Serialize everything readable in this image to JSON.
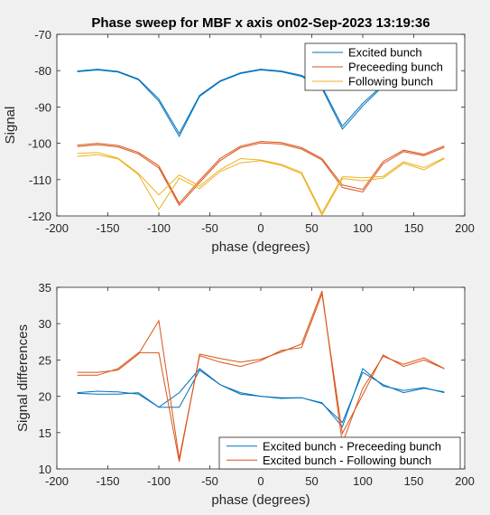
{
  "chart_data": [
    {
      "type": "line",
      "title": "Phase sweep for MBF x axis on02-Sep-2023 13:19:36",
      "xlabel": "phase (degrees)",
      "ylabel": "Signal",
      "xlim": [
        -200,
        200
      ],
      "ylim": [
        -120,
        -70
      ],
      "xticks": [
        "-200",
        "-150",
        "-100",
        "-50",
        "0",
        "50",
        "100",
        "150",
        "200"
      ],
      "yticks": [
        "-120",
        "-110",
        "-100",
        "-90",
        "-80",
        "-70"
      ],
      "legend_position": "top-right",
      "series": [
        {
          "name": "Excited bunch",
          "color": "#0072bd",
          "x": [
            -180,
            -160,
            -140,
            -120,
            -100,
            -80,
            -60,
            -40,
            -20,
            0,
            20,
            40,
            60,
            80,
            100,
            120,
            140,
            160,
            180
          ],
          "lines": [
            [
              -80.1,
              -79.6,
              -80.2,
              -82.3,
              -87.8,
              -97.3,
              -86.8,
              -82.8,
              -80.6,
              -79.6,
              -80.1,
              -81.3,
              -84.4,
              -95.3,
              -89.0,
              -83.8,
              -81.3,
              -80.0,
              -79.8
            ],
            [
              -80.3,
              -79.8,
              -80.4,
              -82.5,
              -88.4,
              -98.1,
              -87.1,
              -83.0,
              -80.8,
              -79.8,
              -80.3,
              -81.6,
              -84.9,
              -96.1,
              -89.7,
              -84.2,
              -81.5,
              -80.2,
              -80.0
            ]
          ]
        },
        {
          "name": "Preceeding bunch",
          "color": "#d95319",
          "x": [
            -180,
            -160,
            -140,
            -120,
            -100,
            -80,
            -60,
            -40,
            -20,
            0,
            20,
            40,
            60,
            80,
            100,
            120,
            140,
            160,
            180
          ],
          "lines": [
            [
              -100.5,
              -100.0,
              -100.6,
              -102.5,
              -106.2,
              -116.5,
              -110.2,
              -104.2,
              -100.8,
              -99.5,
              -99.8,
              -101.2,
              -104.2,
              -111.5,
              -112.7,
              -105.0,
              -101.9,
              -103.0,
              -100.7
            ],
            [
              -100.9,
              -100.4,
              -101.0,
              -102.9,
              -106.8,
              -117.1,
              -110.8,
              -104.8,
              -101.2,
              -99.9,
              -100.2,
              -101.6,
              -104.6,
              -112.2,
              -113.4,
              -105.6,
              -102.3,
              -103.4,
              -101.1
            ]
          ]
        },
        {
          "name": "Following bunch",
          "color": "#edb120",
          "x": [
            -180,
            -160,
            -140,
            -120,
            -100,
            -80,
            -60,
            -40,
            -20,
            0,
            20,
            40,
            60,
            80,
            100,
            120,
            140,
            160,
            180
          ],
          "lines": [
            [
              -102.8,
              -102.5,
              -104.1,
              -108.3,
              -114.2,
              -108.7,
              -111.8,
              -107.3,
              -104.2,
              -104.6,
              -105.8,
              -108.0,
              -119.2,
              -109.2,
              -109.5,
              -109.1,
              -105.1,
              -106.7,
              -104.0
            ],
            [
              -103.6,
              -103.1,
              -104.3,
              -108.6,
              -118.2,
              -109.6,
              -112.5,
              -107.8,
              -105.4,
              -104.8,
              -106.1,
              -108.4,
              -119.8,
              -109.7,
              -110.3,
              -109.6,
              -105.5,
              -107.3,
              -104.2
            ]
          ]
        }
      ]
    },
    {
      "type": "line",
      "title": "",
      "xlabel": "phase (degrees)",
      "ylabel": "Signal differences",
      "xlim": [
        -200,
        200
      ],
      "ylim": [
        10,
        35
      ],
      "xticks": [
        "-200",
        "-150",
        "-100",
        "-50",
        "0",
        "50",
        "100",
        "150",
        "200"
      ],
      "yticks": [
        "10",
        "15",
        "20",
        "25",
        "30",
        "35"
      ],
      "legend_position": "bottom-right",
      "series": [
        {
          "name": "Excited bunch - Preceeding bunch",
          "color": "#0072bd",
          "x": [
            -180,
            -160,
            -140,
            -120,
            -100,
            -80,
            -60,
            -40,
            -20,
            0,
            20,
            40,
            60,
            80,
            100,
            120,
            140,
            160,
            180
          ],
          "lines": [
            [
              20.5,
              20.7,
              20.6,
              20.3,
              18.5,
              20.5,
              23.8,
              21.6,
              20.3,
              20.0,
              19.8,
              19.8,
              19.1,
              15.8,
              23.8,
              21.4,
              20.8,
              21.2,
              20.5
            ],
            [
              20.4,
              20.3,
              20.3,
              20.5,
              18.5,
              18.5,
              23.6,
              21.6,
              20.5,
              20.0,
              19.7,
              19.8,
              19.0,
              16.4,
              23.3,
              21.6,
              20.5,
              21.1,
              20.6
            ]
          ]
        },
        {
          "name": "Excited bunch - Following bunch",
          "color": "#d95319",
          "x": [
            -180,
            -160,
            -140,
            -120,
            -100,
            -80,
            -60,
            -40,
            -20,
            0,
            20,
            40,
            60,
            80,
            100,
            120,
            140,
            160,
            180
          ],
          "lines": [
            [
              22.9,
              22.9,
              23.8,
              26.0,
              26.0,
              11.0,
              25.8,
              25.2,
              24.7,
              25.1,
              26.1,
              27.2,
              34.5,
              13.5,
              21.1,
              25.5,
              24.4,
              25.3,
              23.8
            ],
            [
              23.3,
              23.3,
              23.6,
              25.8,
              30.4,
              11.4,
              25.6,
              24.7,
              24.1,
              24.9,
              26.3,
              26.7,
              34.1,
              14.9,
              20.2,
              25.7,
              24.1,
              25.0,
              23.8
            ]
          ]
        }
      ]
    }
  ]
}
